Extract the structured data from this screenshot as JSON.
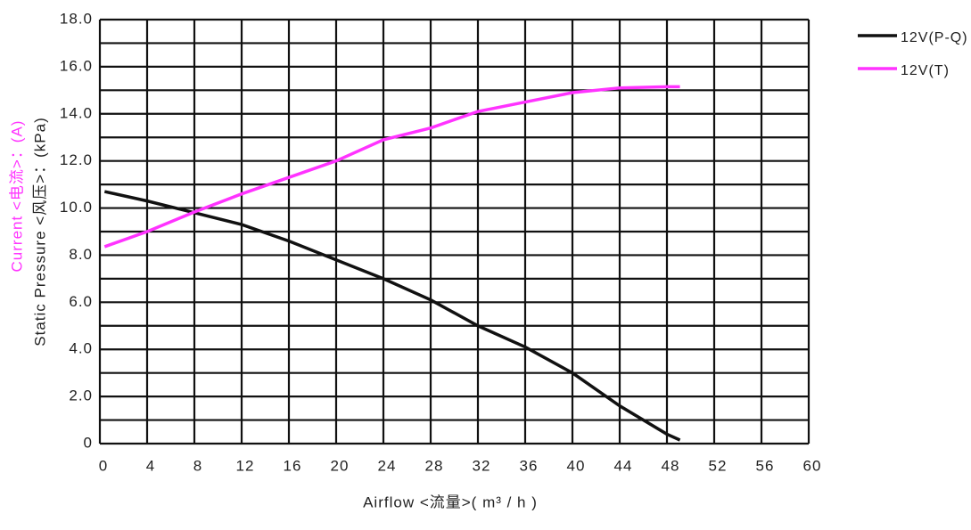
{
  "chart_data": {
    "type": "line",
    "x_label": "Airflow  <流量>( m³ / h )",
    "y_label": "Static  Pressure  <风压>：(kPa)",
    "y_label_2": "Current  <电流>：(A)",
    "y_label_2_color": "#ff33ff",
    "x": [
      0.4,
      4,
      8,
      12,
      16,
      20,
      24,
      28,
      32,
      36,
      40,
      44,
      48,
      49.1
    ],
    "series": [
      {
        "name": "12V(P-Q)",
        "color": "#111111",
        "values": [
          10.7,
          10.3,
          9.8,
          9.3,
          8.6,
          7.8,
          7.0,
          6.1,
          5.0,
          4.1,
          3.0,
          1.6,
          0.4,
          0.15
        ]
      },
      {
        "name": "12V(T)",
        "color": "#ff33ff",
        "values": [
          8.36,
          9.0,
          9.83,
          10.6,
          11.3,
          12.0,
          12.9,
          13.4,
          14.1,
          14.5,
          14.9,
          15.1,
          15.15,
          15.15
        ]
      }
    ],
    "xlim": [
      0,
      60
    ],
    "xticks": [
      0,
      4,
      8,
      12,
      16,
      20,
      24,
      28,
      32,
      36,
      40,
      44,
      48,
      52,
      56,
      60
    ],
    "ylim": [
      0,
      18
    ],
    "yticks": [
      0,
      {
        "value": 2,
        "label": "2.0"
      },
      {
        "value": 4,
        "label": "4.0"
      },
      {
        "value": 6,
        "label": "6.0"
      },
      {
        "value": 8,
        "label": "8.0"
      },
      {
        "value": 10,
        "label": "10.0"
      },
      {
        "value": 12,
        "label": "12.0"
      },
      {
        "value": 14,
        "label": "14.0"
      },
      {
        "value": 16,
        "label": "16.0"
      },
      {
        "value": 18,
        "label": "18.0"
      }
    ],
    "y_minor_ticks": [
      1,
      3,
      5,
      7,
      9,
      11,
      13,
      15,
      17
    ],
    "grid": true,
    "legend": "upper right"
  }
}
